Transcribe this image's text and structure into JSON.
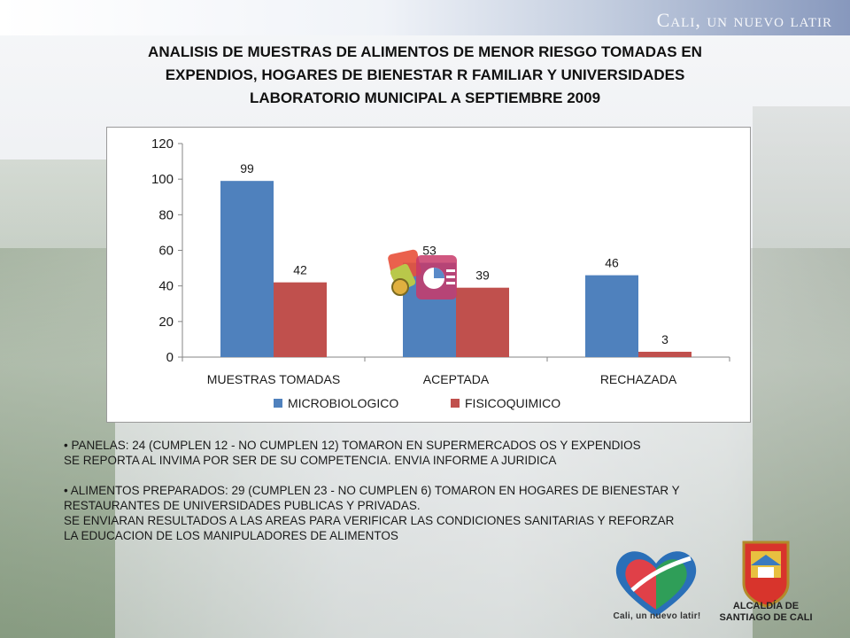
{
  "banner": {
    "text": "Cali, un nuevo latir"
  },
  "title": {
    "line1": "ANALISIS DE MUESTRAS DE ALIMENTOS DE MENOR RIESGO TOMADAS EN",
    "line2": "EXPENDIOS, HOGARES DE BIENESTAR R FAMILIAR Y UNIVERSIDADES",
    "line3": "LABORATORIO MUNICIPAL A SEPTIEMBRE 2009"
  },
  "chart_data": {
    "type": "bar",
    "categories": [
      "MUESTRAS TOMADAS",
      "ACEPTADA",
      "RECHAZADA"
    ],
    "series": [
      {
        "name": "MICROBIOLOGICO",
        "values": [
          99,
          53,
          46
        ],
        "color": "#4f81bd"
      },
      {
        "name": "FISICOQUIMICO",
        "values": [
          42,
          39,
          3
        ],
        "color": "#c0504d"
      }
    ],
    "ylim": [
      0,
      120
    ],
    "yticks": [
      0,
      20,
      40,
      60,
      80,
      100,
      120
    ],
    "legend": "bottom",
    "grid": false
  },
  "notes": {
    "panelas_1": "• PANELAS: 24 (CUMPLEN 12 - NO CUMPLEN 12) TOMARON EN SUPERMERCADOS OS Y EXPENDIOS",
    "panelas_2": "SE REPORTA AL INVIMA POR SER DE SU COMPETENCIA. ENVIA INFORME A JURIDICA",
    "preparados_1": "• ALIMENTOS PREPARADOS: 29 (CUMPLEN 23 - NO CUMPLEN 6) TOMARON EN HOGARES DE BIENESTAR Y",
    "preparados_2": "RESTAURANTES DE UNIVERSIDADES PUBLICAS Y PRIVADAS.",
    "preparados_3": "SE ENVIARAN RESULTADOS A LAS AREAS PARA VERIFICAR LAS CONDICIONES SANITARIAS Y REFORZAR",
    "preparados_4": "LA EDUCACION DE LOS MANIPULADORES DE ALIMENTOS"
  },
  "logos": {
    "left_caption": "Cali, un nuevo latir!",
    "right_caption_1": "ALCALDÍA DE",
    "right_caption_2": "SANTIAGO DE CALI"
  },
  "icons": {
    "overlay": "powerpoint-chart-icon",
    "heart": "heart-logo-icon",
    "shield": "coat-of-arms-icon"
  }
}
